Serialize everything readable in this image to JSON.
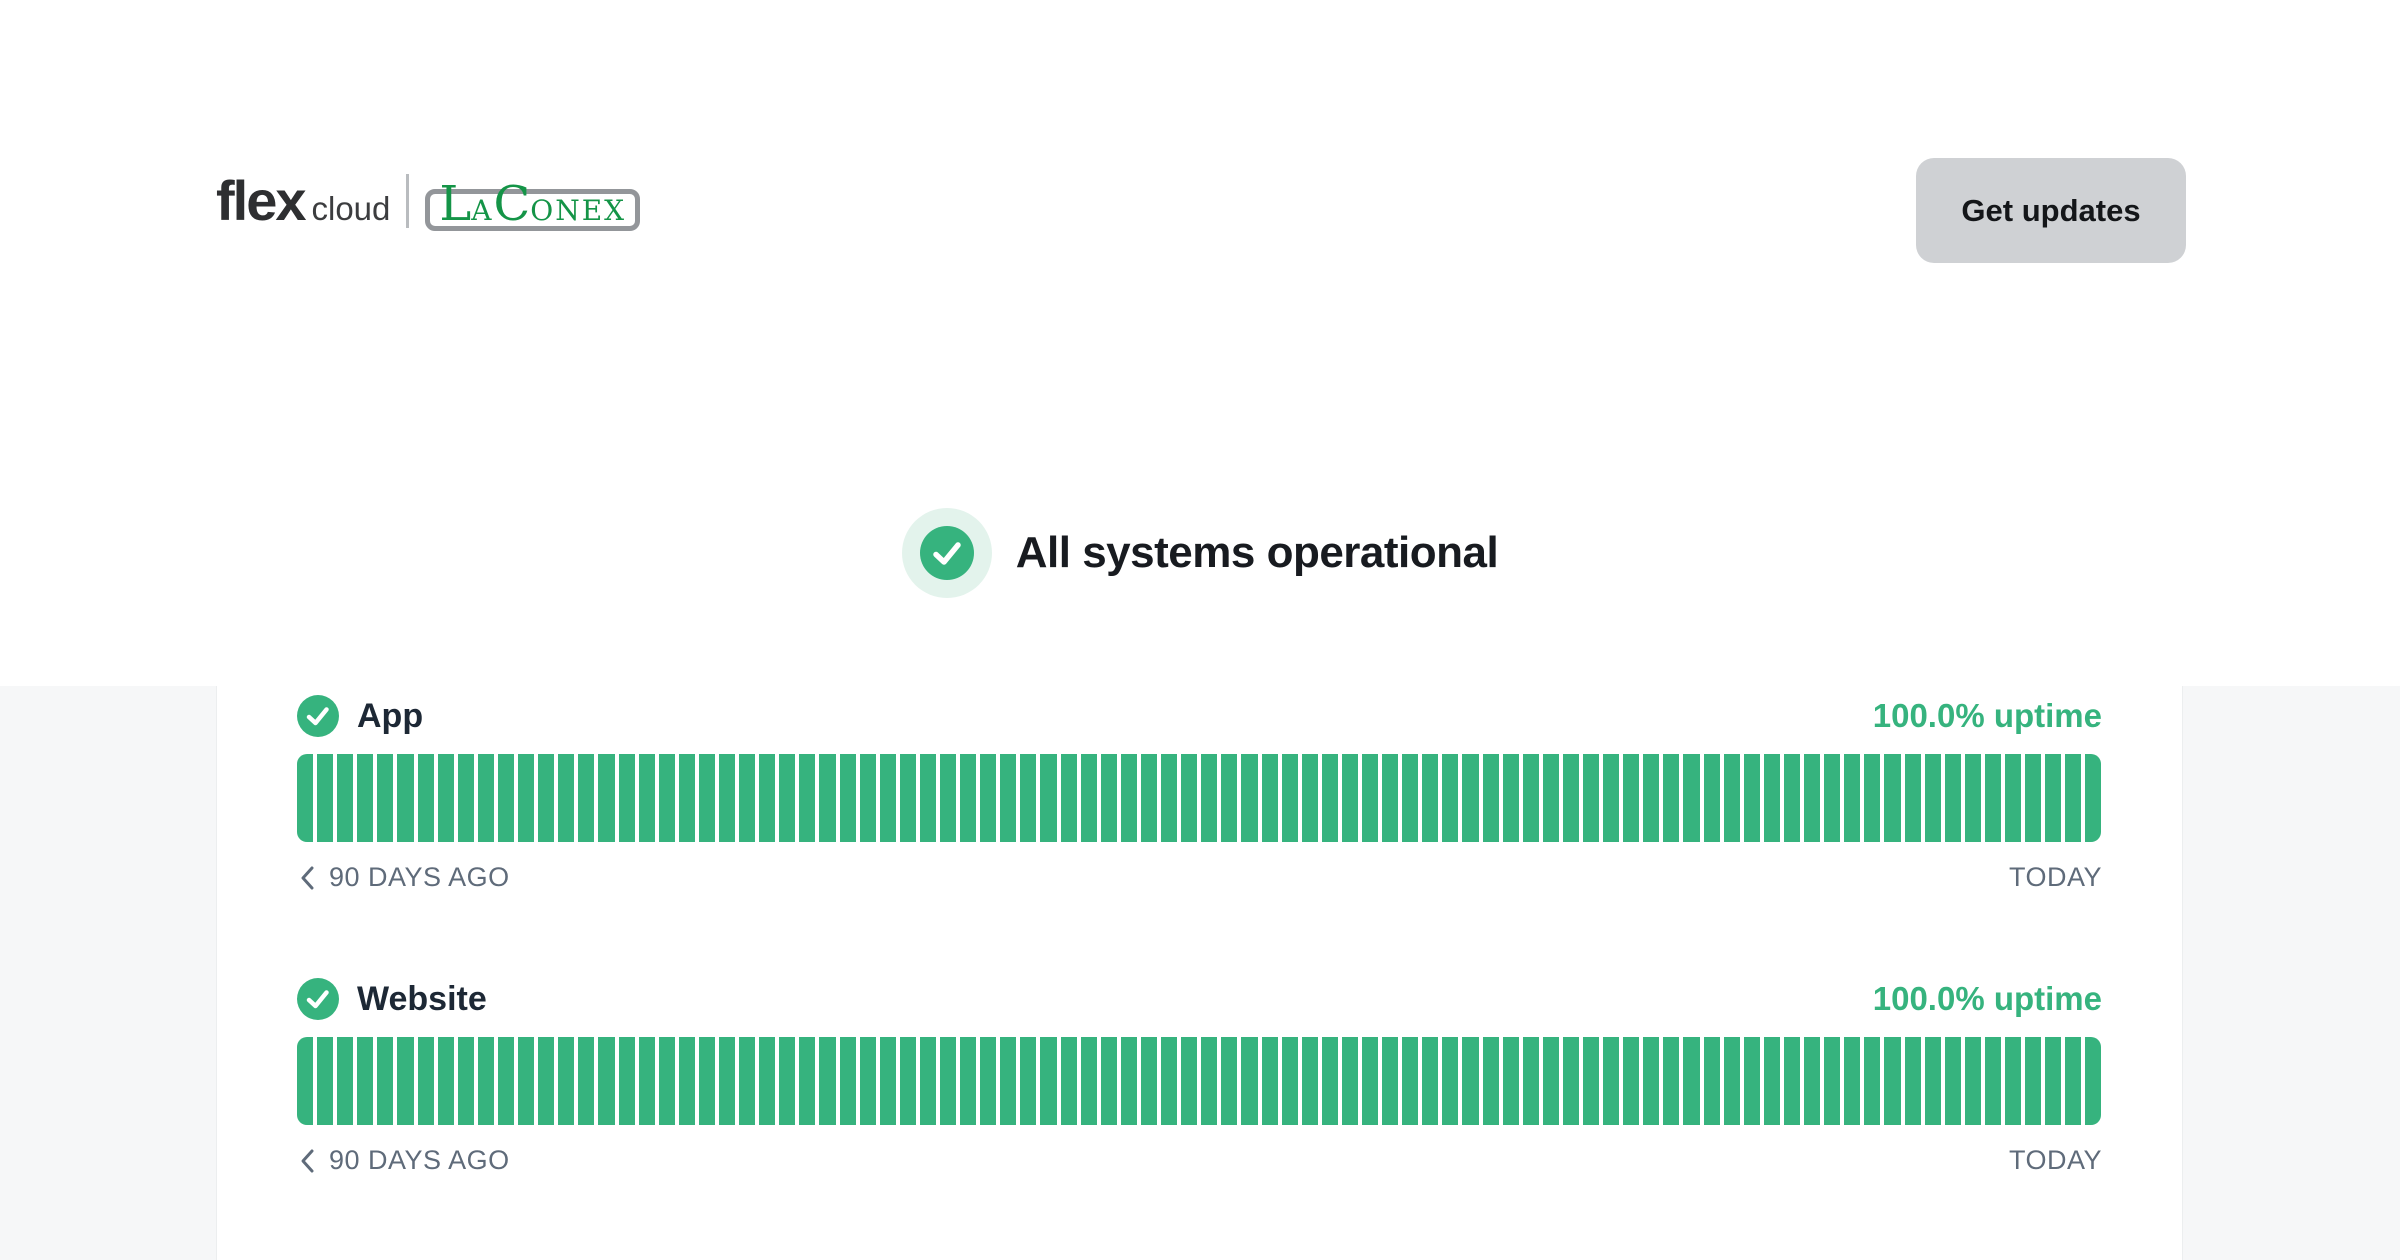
{
  "colors": {
    "green": "#36b37e",
    "green_halo": "#e3f3ec",
    "page_gray": "#f6f7f8",
    "button_gray": "#cfd1d4",
    "axis_gray": "#5f6b7a",
    "heading_dark": "#181b20"
  },
  "header": {
    "logo": {
      "brand": "flex",
      "brand_suffix": "cloud",
      "partner_big_1": "L",
      "partner_small_1": "A",
      "partner_big_2": "C",
      "partner_small_2": "ONEX"
    },
    "get_updates_label": "Get updates"
  },
  "status_banner": {
    "message": "All systems operational"
  },
  "uptime": {
    "days": 90,
    "components": [
      {
        "name": "App",
        "uptime_label": "100.0% uptime",
        "axis_left": "90 DAYS AGO",
        "axis_right": "TODAY"
      },
      {
        "name": "Website",
        "uptime_label": "100.0% uptime",
        "axis_left": "90 DAYS AGO",
        "axis_right": "TODAY"
      }
    ]
  },
  "chart_data": [
    {
      "type": "bar",
      "title": "App uptime, last 90 days",
      "days": 90,
      "daily_value_percent": 100.0,
      "daily_status_all_days": "operational",
      "total_uptime_percent": 100.0,
      "x_start_label": "90 DAYS AGO",
      "x_end_label": "TODAY",
      "bar_color": "#36b37e"
    },
    {
      "type": "bar",
      "title": "Website uptime, last 90 days",
      "days": 90,
      "daily_value_percent": 100.0,
      "daily_status_all_days": "operational",
      "total_uptime_percent": 100.0,
      "x_start_label": "90 DAYS AGO",
      "x_end_label": "TODAY",
      "bar_color": "#36b37e"
    }
  ]
}
